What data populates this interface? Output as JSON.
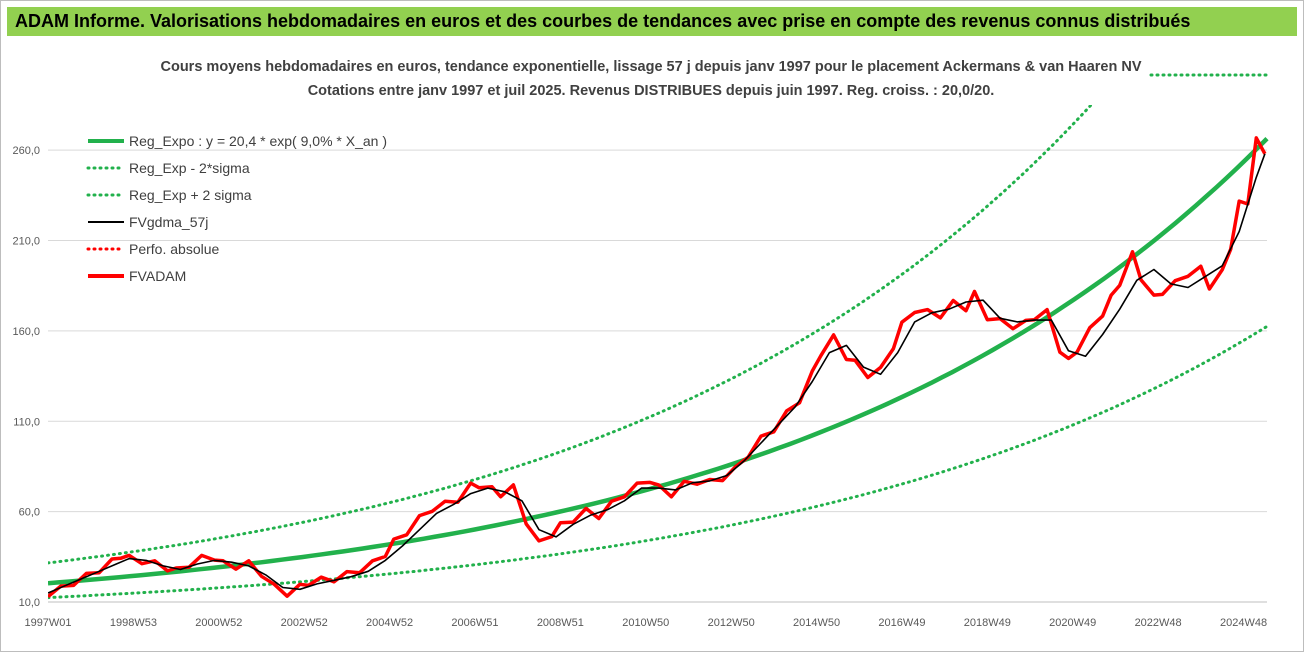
{
  "banner": {
    "title": "ADAM Informe. Valorisations hebdomadaires en euros et des courbes de tendances avec prise en compte des revenus connus distribués"
  },
  "colors": {
    "banner": "#92d050",
    "reg": "#22b14c",
    "fvgdma": "#000000",
    "fvadam": "#ff0000",
    "grid": "#d9d9d9"
  },
  "chart_data": {
    "type": "line",
    "title": "Cours moyens hebdomadaires en euros, tendance exponentielle, lissage 57 j depuis janv 1997 pour le placement Ackermans & van Haaren NV",
    "subtitle": "Cotations entre janv 1997 et juil 2025. Revenus DISTRIBUES depuis juin 1997. Reg. croiss. : 20,0/20.",
    "x_range": [
      1997.0,
      2025.55
    ],
    "x_tick_labels": [
      "1997W01",
      "1998W53",
      "2000W52",
      "2002W52",
      "2004W52",
      "2006W51",
      "2008W51",
      "2010W50",
      "2012W50",
      "2014W50",
      "2016W49",
      "2018W49",
      "2020W49",
      "2022W48",
      "2024W48"
    ],
    "x_tick_years": [
      1997.0,
      1999.0,
      2001.0,
      2003.0,
      2005.0,
      2007.0,
      2009.0,
      2011.0,
      2013.0,
      2015.0,
      2017.0,
      2019.0,
      2021.0,
      2023.0,
      2025.0
    ],
    "ylim": [
      10,
      285
    ],
    "y_ticks": [
      10,
      60,
      110,
      160,
      210,
      260
    ],
    "y_tick_labels": [
      "10,0",
      "60,0",
      "110,0",
      "160,0",
      "210,0",
      "260,0"
    ],
    "grid": true,
    "legend_position": "top-left",
    "legend": [
      {
        "label": "Reg_Expo : y = 20,4 * exp( 9,0% *  X_an )",
        "style": "solid-thick",
        "color": "#22b14c"
      },
      {
        "label": "Reg_Exp - 2*sigma",
        "style": "dotted",
        "color": "#22b14c"
      },
      {
        "label": "Reg_Exp + 2 sigma",
        "style": "dotted",
        "color": "#22b14c"
      },
      {
        "label": "FVgdma_57j",
        "style": "solid",
        "color": "#000000"
      },
      {
        "label": "Perfo. absolue",
        "style": "dotted",
        "color": "#ff0000"
      },
      {
        "label": "FVADAM",
        "style": "solid-thick",
        "color": "#ff0000"
      }
    ],
    "regression": {
      "a": 20.4,
      "rate": 0.09,
      "x0": 1997.0,
      "sigma_low_factor": 0.61,
      "sigma_high_factor": 1.55
    },
    "series": [
      {
        "name": "FVADAM",
        "x": [
          1997.0,
          1997.3,
          1997.6,
          1997.9,
          1998.2,
          1998.5,
          1998.7,
          1998.9,
          1999.2,
          1999.5,
          1999.8,
          2000.0,
          2000.3,
          2000.6,
          2000.9,
          2001.1,
          2001.4,
          2001.7,
          2002.0,
          2002.3,
          2002.6,
          2002.9,
          2003.1,
          2003.4,
          2003.7,
          2004.0,
          2004.3,
          2004.6,
          2004.9,
          2005.1,
          2005.4,
          2005.7,
          2006.0,
          2006.3,
          2006.6,
          2006.9,
          2007.1,
          2007.4,
          2007.6,
          2007.9,
          2008.2,
          2008.5,
          2008.8,
          2009.0,
          2009.3,
          2009.6,
          2009.9,
          2010.2,
          2010.5,
          2010.8,
          2011.1,
          2011.3,
          2011.6,
          2011.9,
          2012.2,
          2012.5,
          2012.8,
          2013.1,
          2013.4,
          2013.7,
          2014.0,
          2014.3,
          2014.6,
          2014.9,
          2015.1,
          2015.4,
          2015.7,
          2015.9,
          2016.2,
          2016.5,
          2016.8,
          2017.0,
          2017.3,
          2017.6,
          2017.9,
          2018.2,
          2018.5,
          2018.7,
          2019.0,
          2019.3,
          2019.6,
          2019.9,
          2020.1,
          2020.4,
          2020.7,
          2020.9,
          2021.1,
          2021.4,
          2021.7,
          2021.9,
          2022.1,
          2022.4,
          2022.6,
          2022.9,
          2023.1,
          2023.4,
          2023.7,
          2024.0,
          2024.2,
          2024.5,
          2024.7,
          2024.9,
          2025.1,
          2025.3,
          2025.5
        ],
        "values": [
          13,
          17,
          21,
          24,
          28,
          32,
          36,
          34,
          33,
          31,
          29,
          27,
          31,
          34,
          35,
          31,
          30,
          31,
          26,
          18,
          15,
          18,
          21,
          22,
          23,
          25,
          28,
          31,
          37,
          43,
          49,
          56,
          62,
          64,
          67,
          74,
          75,
          72,
          70,
          73,
          55,
          42,
          48,
          52,
          56,
          60,
          58,
          64,
          70,
          74,
          78,
          73,
          70,
          75,
          77,
          76,
          79,
          83,
          92,
          100,
          106,
          114,
          122,
          136,
          148,
          156,
          146,
          142,
          136,
          138,
          152,
          163,
          172,
          170,
          169,
          175,
          173,
          180,
          168,
          165,
          163,
          164,
          168,
          170,
          150,
          143,
          150,
          160,
          170,
          178,
          187,
          202,
          190,
          178,
          182,
          186,
          192,
          194,
          185,
          192,
          207,
          230,
          232,
          265,
          258
        ]
      },
      {
        "name": "FVgdma_57j",
        "x": [
          1997.0,
          1997.4,
          1997.8,
          1998.2,
          1998.6,
          1998.9,
          1999.3,
          1999.7,
          2000.1,
          2000.5,
          2000.9,
          2001.3,
          2001.7,
          2002.1,
          2002.5,
          2002.9,
          2003.3,
          2003.7,
          2004.1,
          2004.5,
          2004.9,
          2005.3,
          2005.7,
          2006.1,
          2006.5,
          2006.9,
          2007.3,
          2007.7,
          2008.1,
          2008.5,
          2008.9,
          2009.3,
          2009.7,
          2010.1,
          2010.5,
          2010.9,
          2011.3,
          2011.7,
          2012.1,
          2012.5,
          2012.9,
          2013.3,
          2013.7,
          2014.1,
          2014.5,
          2014.9,
          2015.3,
          2015.7,
          2016.1,
          2016.5,
          2016.9,
          2017.3,
          2017.7,
          2018.1,
          2018.5,
          2018.9,
          2019.3,
          2019.7,
          2020.1,
          2020.5,
          2020.9,
          2021.3,
          2021.7,
          2022.1,
          2022.5,
          2022.9,
          2023.3,
          2023.7,
          2024.1,
          2024.5,
          2024.9,
          2025.3,
          2025.5
        ],
        "values": [
          15,
          19,
          23,
          27,
          31,
          34,
          33,
          30,
          28,
          31,
          33,
          32,
          30,
          25,
          18,
          17,
          20,
          22,
          24,
          27,
          33,
          41,
          50,
          59,
          64,
          70,
          73,
          71,
          66,
          50,
          46,
          53,
          58,
          61,
          66,
          73,
          73,
          72,
          76,
          77,
          80,
          88,
          98,
          108,
          118,
          132,
          148,
          152,
          140,
          136,
          148,
          165,
          170,
          172,
          176,
          177,
          167,
          165,
          166,
          166,
          149,
          146,
          158,
          172,
          188,
          194,
          186,
          184,
          190,
          196,
          215,
          245,
          258
        ]
      }
    ]
  }
}
